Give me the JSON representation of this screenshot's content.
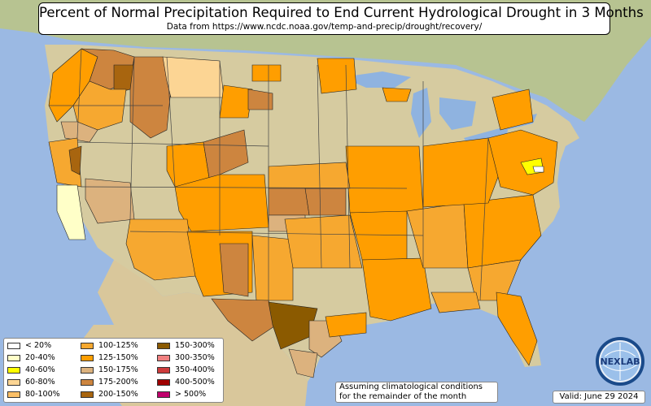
{
  "title": "Percent of Normal Precipitation Required to End Current Hydrological Drought in 3 Months",
  "subtitle": "Data from https://www.ncdc.noaa.gov/temp-and-precip/drought/recovery/",
  "legend": {
    "items": [
      {
        "label": "< 20%",
        "color": "#ffffff"
      },
      {
        "label": "20-40%",
        "color": "#ffffc8"
      },
      {
        "label": "40-60%",
        "color": "#ffff00"
      },
      {
        "label": "60-80%",
        "color": "#fcd594"
      },
      {
        "label": "80-100%",
        "color": "#fbbf66"
      },
      {
        "label": "100-125%",
        "color": "#f6a830"
      },
      {
        "label": "125-150%",
        "color": "#ff9e00"
      },
      {
        "label": "150-175%",
        "color": "#dcb27e"
      },
      {
        "label": "175-200%",
        "color": "#cd853f"
      },
      {
        "label": "200-150%",
        "color": "#a8650f"
      },
      {
        "label": "150-300%",
        "color": "#8b5a00"
      },
      {
        "label": "300-350%",
        "color": "#f08080"
      },
      {
        "label": "350-400%",
        "color": "#cd3c3c"
      },
      {
        "label": "400-500%",
        "color": "#a00000"
      },
      {
        "label": "> 500%",
        "color": "#c0006c"
      }
    ]
  },
  "note": {
    "line1": "Assuming climatological conditions",
    "line2": "for the remainder of the month"
  },
  "valid": "Valid: June 29 2024",
  "logo": {
    "text": "NEXLAB",
    "icon": "globe-icon"
  },
  "colors": {
    "ocean": "#9bb9e3",
    "land": "#d8cfa8",
    "land_north": "#b9c49a",
    "land_desert": "#dccaa0",
    "lake": "#8fb3e0"
  }
}
